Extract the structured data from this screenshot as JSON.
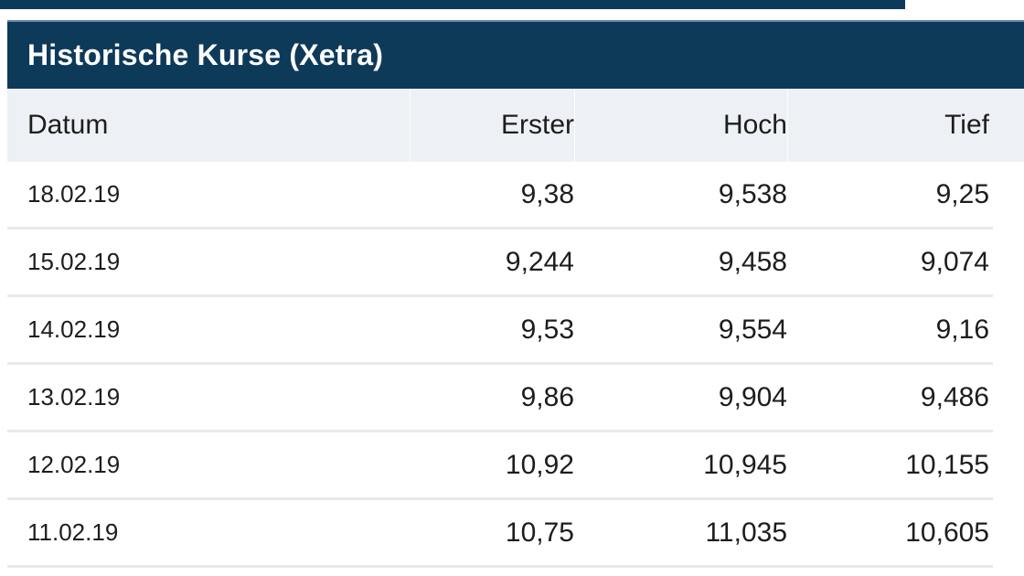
{
  "colors": {
    "title_bar_bg": "#0e3a5a",
    "title_bar_top_border": "#5d87ac",
    "header_row_bg": "#edf1f5",
    "row_divider": "#e8eaea",
    "body_text": "#1d1d1b",
    "title_text": "#ffffff"
  },
  "table": {
    "title": "Historische Kurse (Xetra)",
    "columns": [
      "Datum",
      "Erster",
      "Hoch",
      "Tief"
    ],
    "rows": [
      [
        "18.02.19",
        "9,38",
        "9,538",
        "9,25"
      ],
      [
        "15.02.19",
        "9,244",
        "9,458",
        "9,074"
      ],
      [
        "14.02.19",
        "9,53",
        "9,554",
        "9,16"
      ],
      [
        "13.02.19",
        "9,86",
        "9,904",
        "9,486"
      ],
      [
        "12.02.19",
        "10,92",
        "10,945",
        "10,155"
      ],
      [
        "11.02.19",
        "10,75",
        "11,035",
        "10,605"
      ]
    ]
  },
  "chart_data": {
    "type": "table",
    "title": "Historische Kurse (Xetra)",
    "columns": [
      "Datum",
      "Erster",
      "Hoch",
      "Tief"
    ],
    "categories": [
      "18.02.19",
      "15.02.19",
      "14.02.19",
      "13.02.19",
      "12.02.19",
      "11.02.19"
    ],
    "series": [
      {
        "name": "Erster",
        "values": [
          9.38,
          9.244,
          9.53,
          9.86,
          10.92,
          10.75
        ]
      },
      {
        "name": "Hoch",
        "values": [
          9.538,
          9.458,
          9.554,
          9.904,
          10.945,
          11.035
        ]
      },
      {
        "name": "Tief",
        "values": [
          9.25,
          9.074,
          9.16,
          9.486,
          10.155,
          10.605
        ]
      }
    ],
    "number_format": "de-DE decimal comma"
  }
}
